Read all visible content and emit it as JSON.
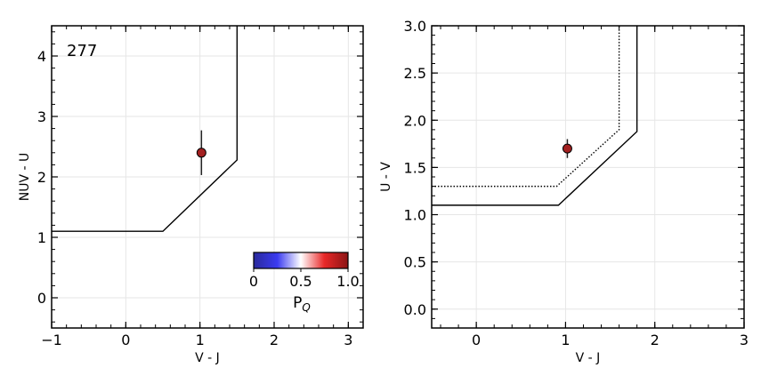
{
  "chart_data": [
    {
      "type": "scatter",
      "panel": "left",
      "xlabel": "V - J",
      "ylabel": "NUV - U",
      "xlim": [
        -1,
        3.2
      ],
      "ylim": [
        -0.5,
        4.5
      ],
      "xticks": [
        -1,
        0,
        1,
        2,
        3
      ],
      "xtick_labels": [
        "−1",
        "0",
        "1",
        "2",
        "3"
      ],
      "yticks": [
        0,
        1,
        2,
        3,
        4
      ],
      "ytick_labels": [
        "0",
        "1",
        "2",
        "3",
        "4"
      ],
      "grid": true,
      "annotation": "277",
      "points": [
        {
          "x": 1.02,
          "y": 2.4,
          "yerr_low": 0.37,
          "yerr_high": 0.37,
          "pq": 1.0
        }
      ],
      "boundary": {
        "style": "solid",
        "x": [
          -1,
          0.5,
          1.5,
          1.5
        ],
        "y": [
          1.1,
          1.1,
          2.28,
          4.5
        ]
      },
      "colorbar": {
        "label": "P",
        "label_sub": "Q",
        "ticks": [
          0,
          0.5,
          1.0
        ],
        "tick_labels": [
          "0",
          "0.5",
          "1.0"
        ],
        "colormap": [
          "#2a2a9c",
          "#3b3bf0",
          "#ffffff",
          "#e82828",
          "#8b1414"
        ]
      }
    },
    {
      "type": "scatter",
      "panel": "right",
      "xlabel": "V - J",
      "ylabel": "U - V",
      "xlim": [
        -0.5,
        3
      ],
      "ylim": [
        -0.2,
        3.0
      ],
      "xticks": [
        0,
        1,
        2,
        3
      ],
      "xtick_labels": [
        "0",
        "1",
        "2",
        "3"
      ],
      "yticks": [
        0.0,
        0.5,
        1.0,
        1.5,
        2.0,
        2.5,
        3.0
      ],
      "ytick_labels": [
        "0.0",
        "0.5",
        "1.0",
        "1.5",
        "2.0",
        "2.5",
        "3.0"
      ],
      "grid": true,
      "points": [
        {
          "x": 1.02,
          "y": 1.7,
          "yerr_low": 0.1,
          "yerr_high": 0.1,
          "pq": 1.0
        }
      ],
      "boundaries": [
        {
          "style": "solid",
          "x": [
            -0.5,
            0.92,
            1.8,
            1.8
          ],
          "y": [
            1.1,
            1.1,
            1.88,
            3.0
          ]
        },
        {
          "style": "dotted",
          "x": [
            -0.5,
            0.9,
            1.6,
            1.6
          ],
          "y": [
            1.3,
            1.3,
            1.9,
            3.0
          ]
        }
      ]
    }
  ],
  "colors": {
    "point_fill": "#a32020",
    "line": "#000000",
    "grid": "#e6e6e6"
  }
}
